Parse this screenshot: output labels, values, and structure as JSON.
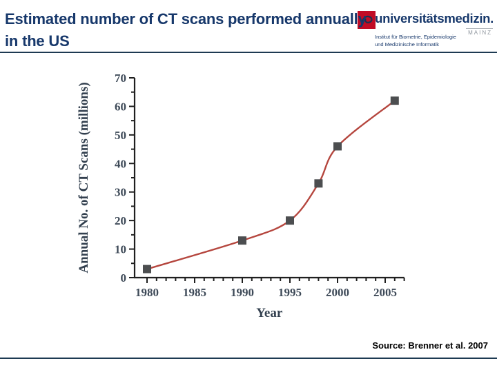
{
  "slide": {
    "title_line1": "Estimated number of CT scans performed annually",
    "title_line2": "in the US",
    "source_note": "Source: Brenner et al. 2007",
    "accent_color": "#17386b",
    "divider_color": "#1d3a52",
    "background": "#ffffff"
  },
  "logo": {
    "wordmark": "universitätsmedizin.",
    "city": "MAINZ",
    "institute_line1": "Institut für Biometrie, Epidemiologie",
    "institute_line2": "und Medizinische Informatik",
    "emblem_color": "#c10b25",
    "wordmark_color": "#17386b",
    "city_color": "#8f969e"
  },
  "chart_data": {
    "type": "line",
    "title": "Estimated number of CT scans performed annually in the US",
    "xlabel": "Year",
    "ylabel": "Annual No. of CT Scans (millions)",
    "series": [
      {
        "name": "Annual CT scans (millions)",
        "x": [
          1980,
          1990,
          1995,
          1998,
          2000,
          2006
        ],
        "y": [
          3,
          13,
          20,
          33,
          46,
          62
        ]
      }
    ],
    "xlim": [
      1978.7,
      2007
    ],
    "ylim": [
      0,
      70
    ],
    "x_major_ticks": [
      1980,
      1985,
      1990,
      1995,
      2000,
      2005
    ],
    "x_minor_tick_step_years": 1,
    "y_major_tick_step": 10,
    "y_minor_tick_step": 5,
    "grid": false,
    "legend": "none",
    "line_color": "#b5463e",
    "marker": "square",
    "marker_color": "#4c4e50",
    "axis_color": "#1f1f1f",
    "tick_label_color": "#3e4a58"
  }
}
